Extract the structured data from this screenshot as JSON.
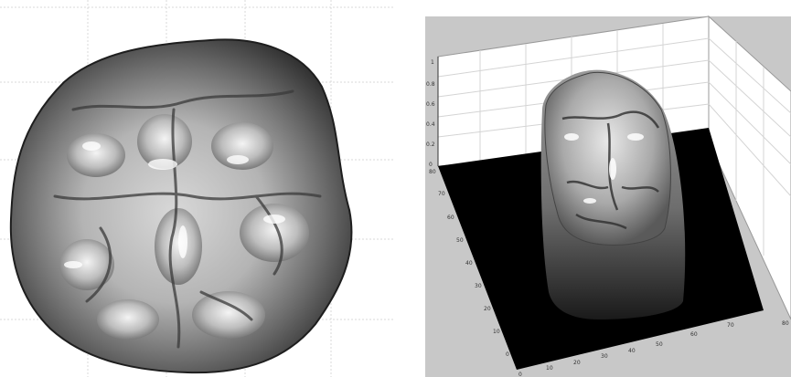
{
  "left_view": {
    "description_icon": "tooth-occlusal-surface-render"
  },
  "right_view": {
    "description_icon": "tooth-3d-surface-plot",
    "x_ticks": [
      "0",
      "10",
      "20",
      "30",
      "40",
      "50",
      "60",
      "70",
      "80"
    ],
    "y_ticks": [
      "0",
      "10",
      "20",
      "30",
      "40",
      "50",
      "60",
      "70",
      "80"
    ],
    "z_ticks": [
      "0",
      "0.2",
      "0.4",
      "0.6",
      "0.8",
      "1"
    ]
  },
  "colors": {
    "background_gray": "#c8c8c8",
    "floor_black": "#000000",
    "grid_line": "#d0d0d0"
  }
}
